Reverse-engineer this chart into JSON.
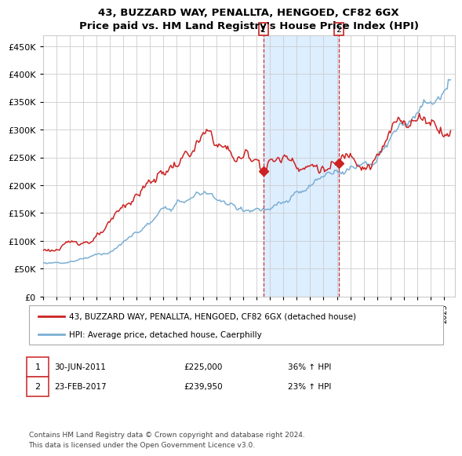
{
  "title": "43, BUZZARD WAY, PENALLTA, HENGOED, CF82 6GX",
  "subtitle": "Price paid vs. HM Land Registry's House Price Index (HPI)",
  "legend_line1": "43, BUZZARD WAY, PENALLTA, HENGOED, CF82 6GX (detached house)",
  "legend_line2": "HPI: Average price, detached house, Caerphilly",
  "annotation1_date": "30-JUN-2011",
  "annotation1_price": "£225,000",
  "annotation1_hpi": "36% ↑ HPI",
  "annotation1_year": 2011.5,
  "annotation1_value": 225000,
  "annotation2_date": "23-FEB-2017",
  "annotation2_price": "£239,950",
  "annotation2_hpi": "23% ↑ HPI",
  "annotation2_year": 2017.15,
  "annotation2_value": 239950,
  "footer": "Contains HM Land Registry data © Crown copyright and database right 2024.\nThis data is licensed under the Open Government Licence v3.0.",
  "hpi_color": "#7bafd4",
  "price_color": "#cc2222",
  "marker_color": "#cc2222",
  "shade_color": "#ddeeff",
  "vline_color": "#cc3333",
  "ylim": [
    0,
    470000
  ],
  "yticks": [
    0,
    50000,
    100000,
    150000,
    200000,
    250000,
    300000,
    350000,
    400000,
    450000
  ],
  "xlim_start": 1995,
  "xlim_end": 2025.8,
  "background_color": "#ffffff",
  "grid_color": "#cccccc"
}
